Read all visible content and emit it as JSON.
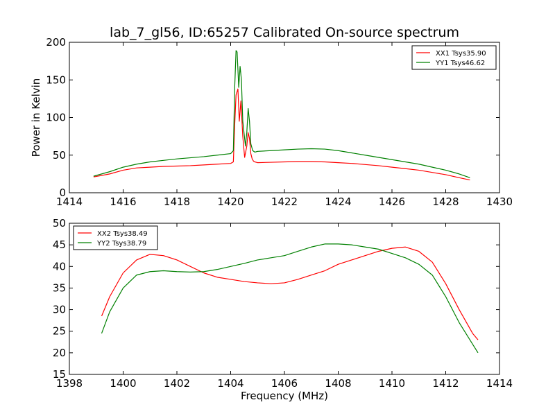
{
  "figure": {
    "title": "lab_7_gl56, ID:65257 Calibrated On-source spectrum"
  },
  "chart_data": [
    {
      "type": "line",
      "title": "lab_7_gl56, ID:65257 Calibrated On-source spectrum",
      "xlabel": "",
      "ylabel": "Power in Kelvin",
      "xlim": [
        1414,
        1430
      ],
      "ylim": [
        0,
        200
      ],
      "xticks": [
        1414,
        1416,
        1418,
        1420,
        1422,
        1424,
        1426,
        1428,
        1430
      ],
      "yticks": [
        0,
        50,
        100,
        150,
        200
      ],
      "grid": false,
      "legend_position": "top-right",
      "series": [
        {
          "name": "XX1 Tsys35.90",
          "color": "#ff0000",
          "x": [
            1414.9,
            1415.5,
            1416.0,
            1416.5,
            1417.0,
            1417.5,
            1418.0,
            1418.5,
            1419.0,
            1419.5,
            1420.0,
            1420.1,
            1420.15,
            1420.2,
            1420.27,
            1420.32,
            1420.38,
            1420.45,
            1420.52,
            1420.6,
            1420.65,
            1420.7,
            1420.75,
            1420.8,
            1420.85,
            1420.9,
            1421.0,
            1421.5,
            1422.0,
            1422.5,
            1423.0,
            1423.5,
            1424.0,
            1424.5,
            1425.0,
            1425.5,
            1426.0,
            1426.5,
            1427.0,
            1427.5,
            1428.0,
            1428.5,
            1428.9
          ],
          "y": [
            21,
            25,
            30,
            33,
            34,
            35,
            35.5,
            36,
            37,
            38,
            39,
            41,
            90,
            130,
            138,
            95,
            122,
            75,
            47,
            62,
            80,
            72,
            52,
            45,
            42,
            41,
            40,
            40.5,
            41,
            41.5,
            41.5,
            41,
            40,
            39,
            37.5,
            36,
            34,
            32,
            30,
            27,
            24,
            20,
            17
          ]
        },
        {
          "name": "YY1 Tsys46.62",
          "color": "#008000",
          "x": [
            1414.9,
            1415.5,
            1416.0,
            1416.5,
            1417.0,
            1417.5,
            1418.0,
            1418.5,
            1419.0,
            1419.5,
            1420.0,
            1420.1,
            1420.15,
            1420.2,
            1420.24,
            1420.3,
            1420.35,
            1420.4,
            1420.45,
            1420.55,
            1420.6,
            1420.65,
            1420.7,
            1420.75,
            1420.82,
            1420.9,
            1421.0,
            1421.5,
            1422.0,
            1422.5,
            1423.0,
            1423.5,
            1424.0,
            1424.5,
            1425.0,
            1425.5,
            1426.0,
            1426.5,
            1427.0,
            1427.5,
            1428.0,
            1428.5,
            1428.9
          ],
          "y": [
            22,
            28,
            34,
            38,
            41,
            43,
            45,
            46.5,
            48,
            50,
            52,
            56,
            140,
            189,
            187,
            140,
            168,
            150,
            95,
            62,
            80,
            112,
            95,
            65,
            56,
            54,
            55,
            56,
            57,
            58,
            58.5,
            58,
            56,
            53,
            50,
            47,
            44,
            41,
            38,
            34,
            30,
            25,
            20
          ]
        }
      ]
    },
    {
      "type": "line",
      "title": "",
      "xlabel": "Frequency (MHz)",
      "ylabel": "",
      "xlim": [
        1398,
        1414
      ],
      "ylim": [
        15,
        50
      ],
      "xticks": [
        1398,
        1400,
        1402,
        1404,
        1406,
        1408,
        1410,
        1412,
        1414
      ],
      "yticks": [
        15,
        20,
        25,
        30,
        35,
        40,
        45,
        50
      ],
      "grid": false,
      "legend_position": "top-left",
      "series": [
        {
          "name": "XX2 Tsys38.49",
          "color": "#ff0000",
          "x": [
            1399.2,
            1399.5,
            1400.0,
            1400.5,
            1401.0,
            1401.5,
            1402.0,
            1402.5,
            1403.0,
            1403.5,
            1404.0,
            1404.5,
            1405.0,
            1405.5,
            1406.0,
            1406.5,
            1407.0,
            1407.5,
            1408.0,
            1408.5,
            1409.0,
            1409.5,
            1410.0,
            1410.5,
            1411.0,
            1411.5,
            1412.0,
            1412.5,
            1413.0,
            1413.2
          ],
          "y": [
            28.5,
            33,
            38.5,
            41.5,
            42.8,
            42.5,
            41.5,
            40,
            38.5,
            37.5,
            37,
            36.5,
            36.2,
            36,
            36.2,
            37,
            38,
            39,
            40.5,
            41.5,
            42.5,
            43.5,
            44.2,
            44.5,
            43.5,
            41,
            36,
            30,
            24.5,
            23
          ]
        },
        {
          "name": "YY2 Tsys38.79",
          "color": "#008000",
          "x": [
            1399.2,
            1399.5,
            1400.0,
            1400.5,
            1401.0,
            1401.5,
            1402.0,
            1402.5,
            1403.0,
            1403.5,
            1404.0,
            1404.5,
            1405.0,
            1405.5,
            1406.0,
            1406.5,
            1407.0,
            1407.5,
            1408.0,
            1408.5,
            1409.0,
            1409.5,
            1410.0,
            1410.5,
            1411.0,
            1411.5,
            1412.0,
            1412.5,
            1413.0,
            1413.2
          ],
          "y": [
            24.5,
            29.5,
            35,
            38,
            38.8,
            39,
            38.8,
            38.7,
            38.8,
            39.3,
            40,
            40.7,
            41.5,
            42,
            42.5,
            43.5,
            44.5,
            45.2,
            45.2,
            45,
            44.5,
            44,
            43,
            42,
            40.5,
            38,
            33,
            27,
            22,
            20
          ]
        }
      ]
    }
  ]
}
